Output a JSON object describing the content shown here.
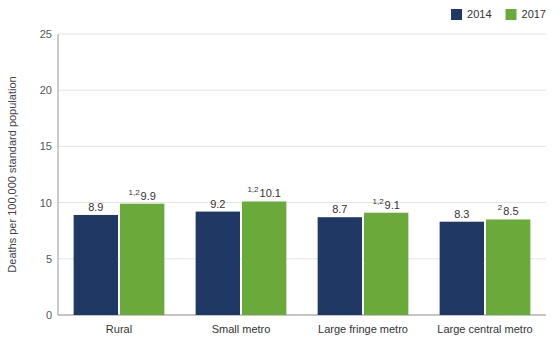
{
  "chart_data": {
    "type": "bar",
    "categories": [
      "Rural",
      "Small metro",
      "Large fringe metro",
      "Large central metro"
    ],
    "series": [
      {
        "name": "2014",
        "color": "#1f3864",
        "values": [
          8.9,
          9.2,
          8.7,
          8.3
        ]
      },
      {
        "name": "2017",
        "color": "#6aaa3a",
        "values": [
          9.9,
          10.1,
          9.1,
          8.5
        ],
        "annotations": [
          "1,2",
          "1,2",
          "1,2",
          "2"
        ]
      }
    ],
    "y_label": "Deaths per 100,000 standard population",
    "ylim": [
      0,
      25
    ],
    "yticks": [
      0,
      5,
      10,
      15,
      20,
      25
    ],
    "grid": true,
    "legend": "upper right",
    "data_labels": true
  }
}
